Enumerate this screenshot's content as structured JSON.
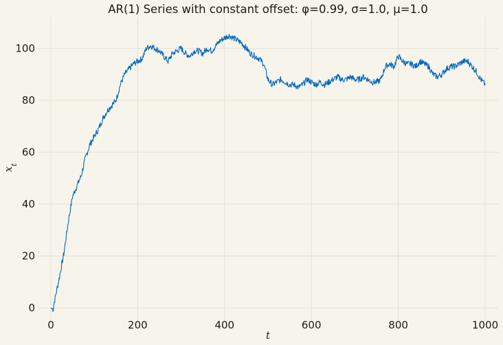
{
  "chart_data": {
    "type": "line",
    "title": "AR(1) Series with constant offset: φ=0.99, σ=1.0, μ=1.0",
    "xlabel": "t",
    "ylabel_base": "x",
    "ylabel_sub": "t",
    "xlim": [
      -30,
      1030
    ],
    "ylim": [
      -5,
      112
    ],
    "xticks": [
      0,
      200,
      400,
      600,
      800,
      1000
    ],
    "yticks": [
      0,
      20,
      40,
      60,
      80,
      100
    ],
    "grid": true,
    "line_color": "#0066bb",
    "anchors": [
      [
        0,
        0
      ],
      [
        5,
        -0.5
      ],
      [
        10,
        4
      ],
      [
        20,
        12
      ],
      [
        30,
        21
      ],
      [
        40,
        33
      ],
      [
        50,
        43
      ],
      [
        60,
        47
      ],
      [
        70,
        51
      ],
      [
        80,
        58
      ],
      [
        90,
        63
      ],
      [
        100,
        66
      ],
      [
        110,
        69
      ],
      [
        120,
        73
      ],
      [
        130,
        76
      ],
      [
        140,
        78
      ],
      [
        150,
        80
      ],
      [
        160,
        86
      ],
      [
        170,
        90
      ],
      [
        180,
        92
      ],
      [
        190,
        94
      ],
      [
        200,
        95
      ],
      [
        210,
        96
      ],
      [
        220,
        100
      ],
      [
        230,
        101
      ],
      [
        240,
        100
      ],
      [
        250,
        99
      ],
      [
        260,
        97
      ],
      [
        270,
        95
      ],
      [
        280,
        98
      ],
      [
        290,
        99
      ],
      [
        300,
        100
      ],
      [
        310,
        98
      ],
      [
        320,
        97
      ],
      [
        330,
        99
      ],
      [
        340,
        99
      ],
      [
        350,
        98
      ],
      [
        360,
        100
      ],
      [
        370,
        99
      ],
      [
        380,
        101
      ],
      [
        390,
        103
      ],
      [
        400,
        104
      ],
      [
        410,
        105
      ],
      [
        420,
        104
      ],
      [
        430,
        103
      ],
      [
        440,
        102
      ],
      [
        450,
        100
      ],
      [
        460,
        98
      ],
      [
        470,
        97
      ],
      [
        480,
        96
      ],
      [
        490,
        94
      ],
      [
        500,
        88
      ],
      [
        510,
        86
      ],
      [
        520,
        87
      ],
      [
        530,
        88
      ],
      [
        540,
        87
      ],
      [
        550,
        86
      ],
      [
        560,
        86
      ],
      [
        570,
        85
      ],
      [
        580,
        86
      ],
      [
        590,
        88
      ],
      [
        600,
        87
      ],
      [
        610,
        86
      ],
      [
        620,
        87
      ],
      [
        630,
        86
      ],
      [
        640,
        87
      ],
      [
        650,
        88
      ],
      [
        660,
        89
      ],
      [
        670,
        88
      ],
      [
        680,
        88
      ],
      [
        690,
        89
      ],
      [
        700,
        88
      ],
      [
        710,
        88
      ],
      [
        720,
        89
      ],
      [
        730,
        88
      ],
      [
        740,
        87
      ],
      [
        750,
        87
      ],
      [
        760,
        88
      ],
      [
        770,
        93
      ],
      [
        780,
        94
      ],
      [
        790,
        93
      ],
      [
        800,
        97
      ],
      [
        810,
        95
      ],
      [
        820,
        94
      ],
      [
        830,
        94
      ],
      [
        840,
        93
      ],
      [
        850,
        95
      ],
      [
        860,
        94
      ],
      [
        870,
        93
      ],
      [
        880,
        90
      ],
      [
        890,
        89
      ],
      [
        900,
        90
      ],
      [
        910,
        92
      ],
      [
        920,
        93
      ],
      [
        930,
        93
      ],
      [
        940,
        94
      ],
      [
        950,
        95
      ],
      [
        960,
        95
      ],
      [
        970,
        93
      ],
      [
        980,
        91
      ],
      [
        990,
        88
      ],
      [
        1000,
        86
      ]
    ]
  }
}
